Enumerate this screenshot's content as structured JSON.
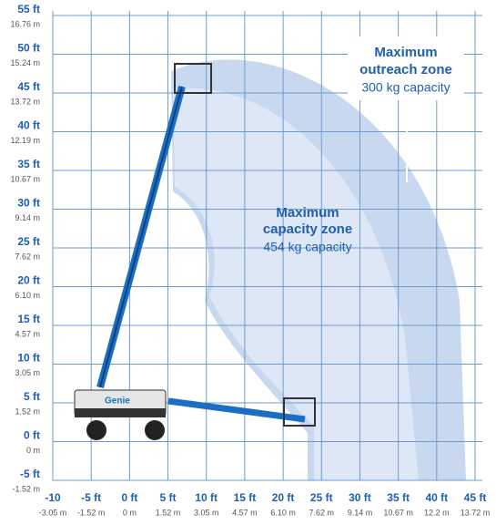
{
  "y_axis": [
    {
      "ft": "55 ft",
      "m": "16.76 m"
    },
    {
      "ft": "50 ft",
      "m": "15.24 m"
    },
    {
      "ft": "45 ft",
      "m": "13.72 m"
    },
    {
      "ft": "40 ft",
      "m": "12.19 m"
    },
    {
      "ft": "35 ft",
      "m": "10.67 m"
    },
    {
      "ft": "30 ft",
      "m": "9.14 m"
    },
    {
      "ft": "25 ft",
      "m": "7.62 m"
    },
    {
      "ft": "20 ft",
      "m": "6.10 m"
    },
    {
      "ft": "15 ft",
      "m": "4.57 m"
    },
    {
      "ft": "10 ft",
      "m": "3.05 m"
    },
    {
      "ft": "5 ft",
      "m": "1.52 m"
    },
    {
      "ft": "0 ft",
      "m": "0 m"
    },
    {
      "ft": "-5 ft",
      "m": "-1.52 m"
    }
  ],
  "x_axis": [
    {
      "ft": "-10",
      "m": "-3.05 m"
    },
    {
      "ft": "-5 ft",
      "m": "-1.52 m"
    },
    {
      "ft": "0 ft",
      "m": "0 m"
    },
    {
      "ft": "5 ft",
      "m": "1.52 m"
    },
    {
      "ft": "10 ft",
      "m": "3.05 m"
    },
    {
      "ft": "15 ft",
      "m": "4.57 m"
    },
    {
      "ft": "20 ft",
      "m": "6.10 m"
    },
    {
      "ft": "25 ft",
      "m": "7.62 m"
    },
    {
      "ft": "30 ft",
      "m": "9.14 m"
    },
    {
      "ft": "35 ft",
      "m": "10.67 m"
    },
    {
      "ft": "40 ft",
      "m": "12.2 m"
    },
    {
      "ft": "45 ft",
      "m": "13.72 m"
    }
  ],
  "outreach_zone": {
    "title_line1": "Maximum",
    "title_line2": "outreach zone",
    "capacity": "300 kg capacity"
  },
  "capacity_zone": {
    "title_line1": "Maximum",
    "title_line2": "capacity zone",
    "capacity": "454 kg capacity"
  },
  "brand": "Genie"
}
